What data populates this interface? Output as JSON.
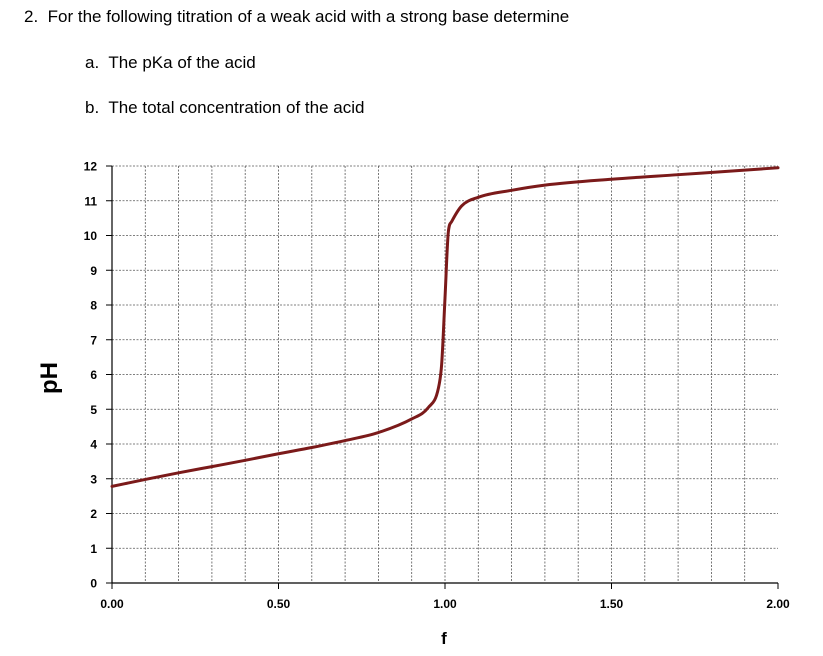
{
  "question": {
    "number": "2.",
    "text": "For the following titration of a weak acid with a strong base determine",
    "parts": [
      {
        "label": "a.",
        "text": "The pKa of the acid"
      },
      {
        "label": "b.",
        "text": "The total concentration of the acid"
      }
    ]
  },
  "chart_data": {
    "type": "line",
    "title": "",
    "xlabel": "f",
    "ylabel": "pH",
    "xlim": [
      0,
      2
    ],
    "ylim": [
      0,
      12
    ],
    "x_ticks": [
      "0.00",
      "0.50",
      "1.00",
      "1.50",
      "2.00"
    ],
    "y_ticks": [
      "0",
      "1",
      "2",
      "3",
      "4",
      "5",
      "6",
      "7",
      "8",
      "9",
      "10",
      "11",
      "12"
    ],
    "grid": true,
    "series": [
      {
        "color": "#7b1a1a",
        "x": [
          0.0,
          0.1,
          0.2,
          0.3,
          0.4,
          0.5,
          0.6,
          0.7,
          0.8,
          0.9,
          0.95,
          0.98,
          0.99,
          1.0,
          1.01,
          1.02,
          1.05,
          1.1,
          1.2,
          1.3,
          1.5,
          1.7,
          1.9,
          2.0
        ],
        "y": [
          2.78,
          2.98,
          3.17,
          3.35,
          3.53,
          3.72,
          3.9,
          4.1,
          4.33,
          4.72,
          5.05,
          5.6,
          6.3,
          8.2,
          10.1,
          10.4,
          10.85,
          11.1,
          11.3,
          11.45,
          11.62,
          11.75,
          11.88,
          11.95
        ]
      }
    ]
  }
}
